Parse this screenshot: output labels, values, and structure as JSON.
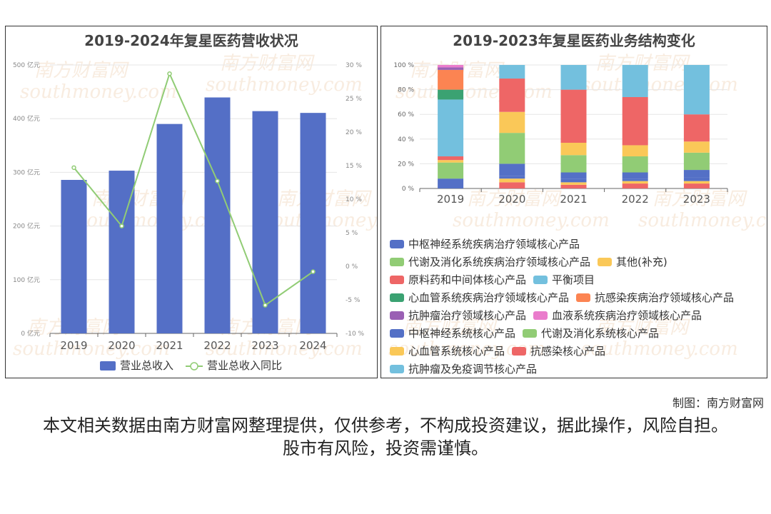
{
  "footer": {
    "credit": "制图：南方财富网",
    "disclaimer": "本文相关数据由南方财富网整理提供，仅供参考，不构成投资建议，据此操作，风险自担。股市有风险，投资需谨慎。"
  },
  "watermark": {
    "cn": "南方财富网",
    "en": "southmoney.com"
  },
  "chart_data": [
    {
      "type": "bar",
      "title": "2019-2024年复星医药营收状况",
      "categories": [
        "2019",
        "2020",
        "2021",
        "2022",
        "2023",
        "2024"
      ],
      "y_left_ticks": [
        "0 亿元",
        "100 亿元",
        "200 亿元",
        "300 亿元",
        "400 亿元",
        "500 亿元"
      ],
      "y_right_ticks": [
        "-10 %",
        "-5 %",
        "0 %",
        "5 %",
        "10 %",
        "15 %",
        "20 %",
        "25 %",
        "30 %"
      ],
      "ylim_left": [
        0,
        500
      ],
      "ylim_right": [
        -10,
        30
      ],
      "legend_position": "bottom",
      "series": [
        {
          "name": "营业总收入",
          "type": "bar",
          "axis": "left",
          "color": "#546fc6",
          "values": [
            285.9,
            303.1,
            390.1,
            439.5,
            414.0,
            410.7
          ]
        },
        {
          "name": "营业总收入同比",
          "type": "line",
          "axis": "right",
          "color": "#91cc75",
          "values": [
            14.7,
            6.0,
            28.7,
            12.7,
            -5.8,
            -0.8
          ]
        }
      ]
    },
    {
      "type": "bar",
      "stacked": true,
      "title": "2019-2023年复星医药业务结构变化",
      "categories": [
        "2019",
        "2020",
        "2021",
        "2022",
        "2023"
      ],
      "y_ticks": [
        "0 %",
        "20 %",
        "40 %",
        "60 %",
        "80 %",
        "100 %"
      ],
      "ylim": [
        0,
        100
      ],
      "legend_position": "bottom",
      "series": [
        {
          "name": "中枢神经系统疾病治疗领域核心产品",
          "color": "#5470c6",
          "values": [
            8,
            0,
            0,
            0,
            0
          ]
        },
        {
          "name": "代谢及消化系统疾病治疗领域核心产品",
          "color": "#91cc75",
          "values": [
            13,
            0,
            0,
            0,
            0
          ]
        },
        {
          "name": "其他(补充)",
          "color": "#fac858",
          "values": [
            2,
            0,
            0,
            0,
            0
          ]
        },
        {
          "name": "原料药和中间体核心产品",
          "color": "#ee6666",
          "values": [
            3,
            0,
            0,
            0,
            0
          ]
        },
        {
          "name": "平衡项目",
          "color": "#73c0de",
          "values": [
            46,
            0,
            0,
            0,
            0
          ]
        },
        {
          "name": "心血管系统疾病治疗领域核心产品",
          "color": "#3ba272",
          "values": [
            8,
            0,
            0,
            0,
            0
          ]
        },
        {
          "name": "抗感染疾病治疗领域核心产品",
          "color": "#fc8452",
          "values": [
            16,
            0,
            0,
            0,
            0
          ]
        },
        {
          "name": "抗肿瘤治疗领域核心产品",
          "color": "#9a60b4",
          "values": [
            2,
            0,
            0,
            0,
            0
          ]
        },
        {
          "name": "血液系统疾病治疗领域核心产品",
          "color": "#ea7ccc",
          "values": [
            2,
            0,
            0,
            0,
            0
          ]
        },
        {
          "name": "中枢神经系统核心产品",
          "color": "#5470c6",
          "values": [
            0,
            10,
            5,
            5,
            6
          ]
        },
        {
          "name": "代谢及消化系统核心产品",
          "color": "#91cc75",
          "values": [
            0,
            25,
            14,
            13,
            14
          ]
        },
        {
          "name": "心血管系统核心产品",
          "color": "#fac858",
          "values": [
            0,
            17,
            10,
            9,
            9
          ]
        },
        {
          "name": "抗感染核心产品",
          "color": "#ee6666",
          "values": [
            0,
            27,
            43,
            39,
            22
          ]
        },
        {
          "name": "抗肿瘤及免疫调节核心产品",
          "color": "#73c0de",
          "values": [
            0,
            11,
            20,
            26,
            40
          ]
        }
      ],
      "other_segments_bottom": [
        {
          "name": "原料药和中间体核心产品",
          "color": "#ee6666",
          "values": [
            0,
            5,
            3,
            4,
            4
          ]
        },
        {
          "name": "其他(补充)",
          "color": "#fac858",
          "values": [
            0,
            3,
            2,
            2,
            2
          ]
        },
        {
          "name": "中枢神经系统核心产品",
          "color": "#5470c6",
          "values": [
            0,
            2,
            3,
            2,
            3
          ]
        }
      ]
    }
  ]
}
